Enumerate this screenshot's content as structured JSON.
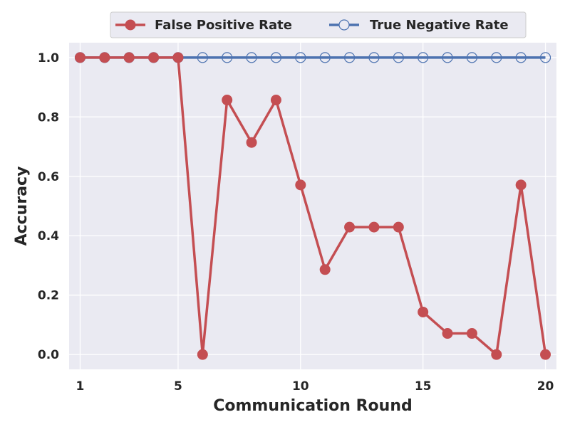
{
  "chart_data": {
    "type": "line",
    "xlabel": "Communication Round",
    "ylabel": "Accuracy",
    "x": [
      1,
      2,
      3,
      4,
      5,
      6,
      7,
      8,
      9,
      10,
      11,
      12,
      13,
      14,
      15,
      16,
      17,
      18,
      19,
      20
    ],
    "xticks": [
      1,
      5,
      10,
      15,
      20
    ],
    "xtick_labels": [
      "1",
      "5",
      "10",
      "15",
      "20"
    ],
    "yticks": [
      0.0,
      0.2,
      0.4,
      0.6,
      0.8,
      1.0
    ],
    "ytick_labels": [
      "0.0",
      "0.2",
      "0.4",
      "0.6",
      "0.8",
      "1.0"
    ],
    "xlim": [
      0.55,
      20.45
    ],
    "ylim": [
      -0.05,
      1.05
    ],
    "grid": true,
    "legend_position": "top-center",
    "series": [
      {
        "name": "False Positive Rate",
        "color": "#c44e52",
        "marker": "filled-circle",
        "values": [
          1.0,
          1.0,
          1.0,
          1.0,
          1.0,
          0.0,
          0.857,
          0.714,
          0.857,
          0.571,
          0.286,
          0.429,
          0.429,
          0.429,
          0.143,
          0.071,
          0.071,
          0.0,
          0.571,
          0.0
        ]
      },
      {
        "name": "True Negative Rate",
        "color": "#4c72b0",
        "marker": "hollow-circle",
        "values": [
          1.0,
          1.0,
          1.0,
          1.0,
          1.0,
          1.0,
          1.0,
          1.0,
          1.0,
          1.0,
          1.0,
          1.0,
          1.0,
          1.0,
          1.0,
          1.0,
          1.0,
          1.0,
          1.0,
          1.0
        ]
      }
    ]
  }
}
